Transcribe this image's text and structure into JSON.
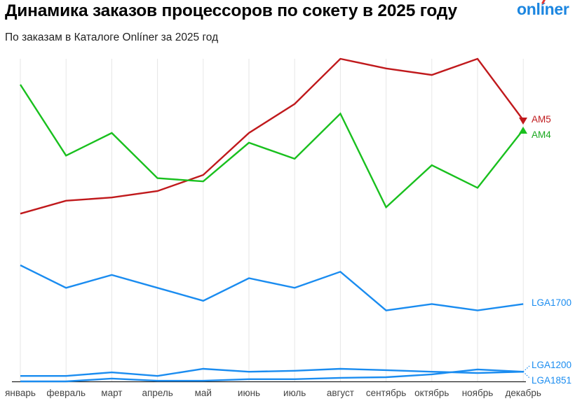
{
  "header": {
    "title": "Динамика заказов процессоров по сокету в 2025 году",
    "subtitle": "По заказам в Каталоге Onlíner за 2025 год",
    "logo": "onlíner"
  },
  "chart_data": {
    "type": "line",
    "title": "Динамика заказов процессоров по сокету в 2025 году",
    "subtitle": "По заказам в Каталоге Onlíner за 2025 год",
    "xlabel": "",
    "ylabel": "",
    "y_axis_note": "Y axis unlabeled; values are a normalized relative index (0 = baseline, 100 = chart top) estimated from pixel positions",
    "ylim": [
      0,
      100
    ],
    "grid": "vertical lines at each month",
    "legend_position": "inline labels at right end of lines",
    "categories": [
      "январь",
      "февраль",
      "март",
      "апрель",
      "май",
      "июнь",
      "июль",
      "август",
      "сентябрь",
      "октябрь",
      "ноябрь",
      "декабрь"
    ],
    "series": [
      {
        "name": "AM5",
        "color": "#c0191c",
        "values": [
          52,
          56,
          57,
          59,
          64,
          77,
          86,
          100,
          97,
          95,
          100,
          81
        ]
      },
      {
        "name": "AM4",
        "color": "#19c01e",
        "values": [
          92,
          70,
          77,
          63,
          62,
          74,
          69,
          83,
          54,
          67,
          60,
          78
        ]
      },
      {
        "name": "LGA1700",
        "color": "#1a8cf0",
        "values": [
          36,
          29,
          33,
          29,
          25,
          32,
          29,
          34,
          22,
          24,
          22,
          24
        ]
      },
      {
        "name": "LGA1200",
        "color": "#1a8cf0",
        "values": [
          1.7,
          1.7,
          2.8,
          1.7,
          3.9,
          3.0,
          3.3,
          3.9,
          3.5,
          3.0,
          2.6,
          3.0
        ]
      },
      {
        "name": "LGA1851",
        "color": "#1a8cf0",
        "values": [
          0,
          0,
          0.9,
          0.2,
          0.2,
          0.7,
          0.7,
          1.1,
          1.3,
          2.2,
          3.7,
          3.0
        ]
      }
    ],
    "end_markers": {
      "AM5": "down-triangle",
      "AM4": "up-triangle"
    }
  },
  "labels": {
    "am5": "AM5",
    "am4": "AM4",
    "lga1700": "LGA1700",
    "lga1200": "LGA1200",
    "lga1851": "LGA1851"
  }
}
